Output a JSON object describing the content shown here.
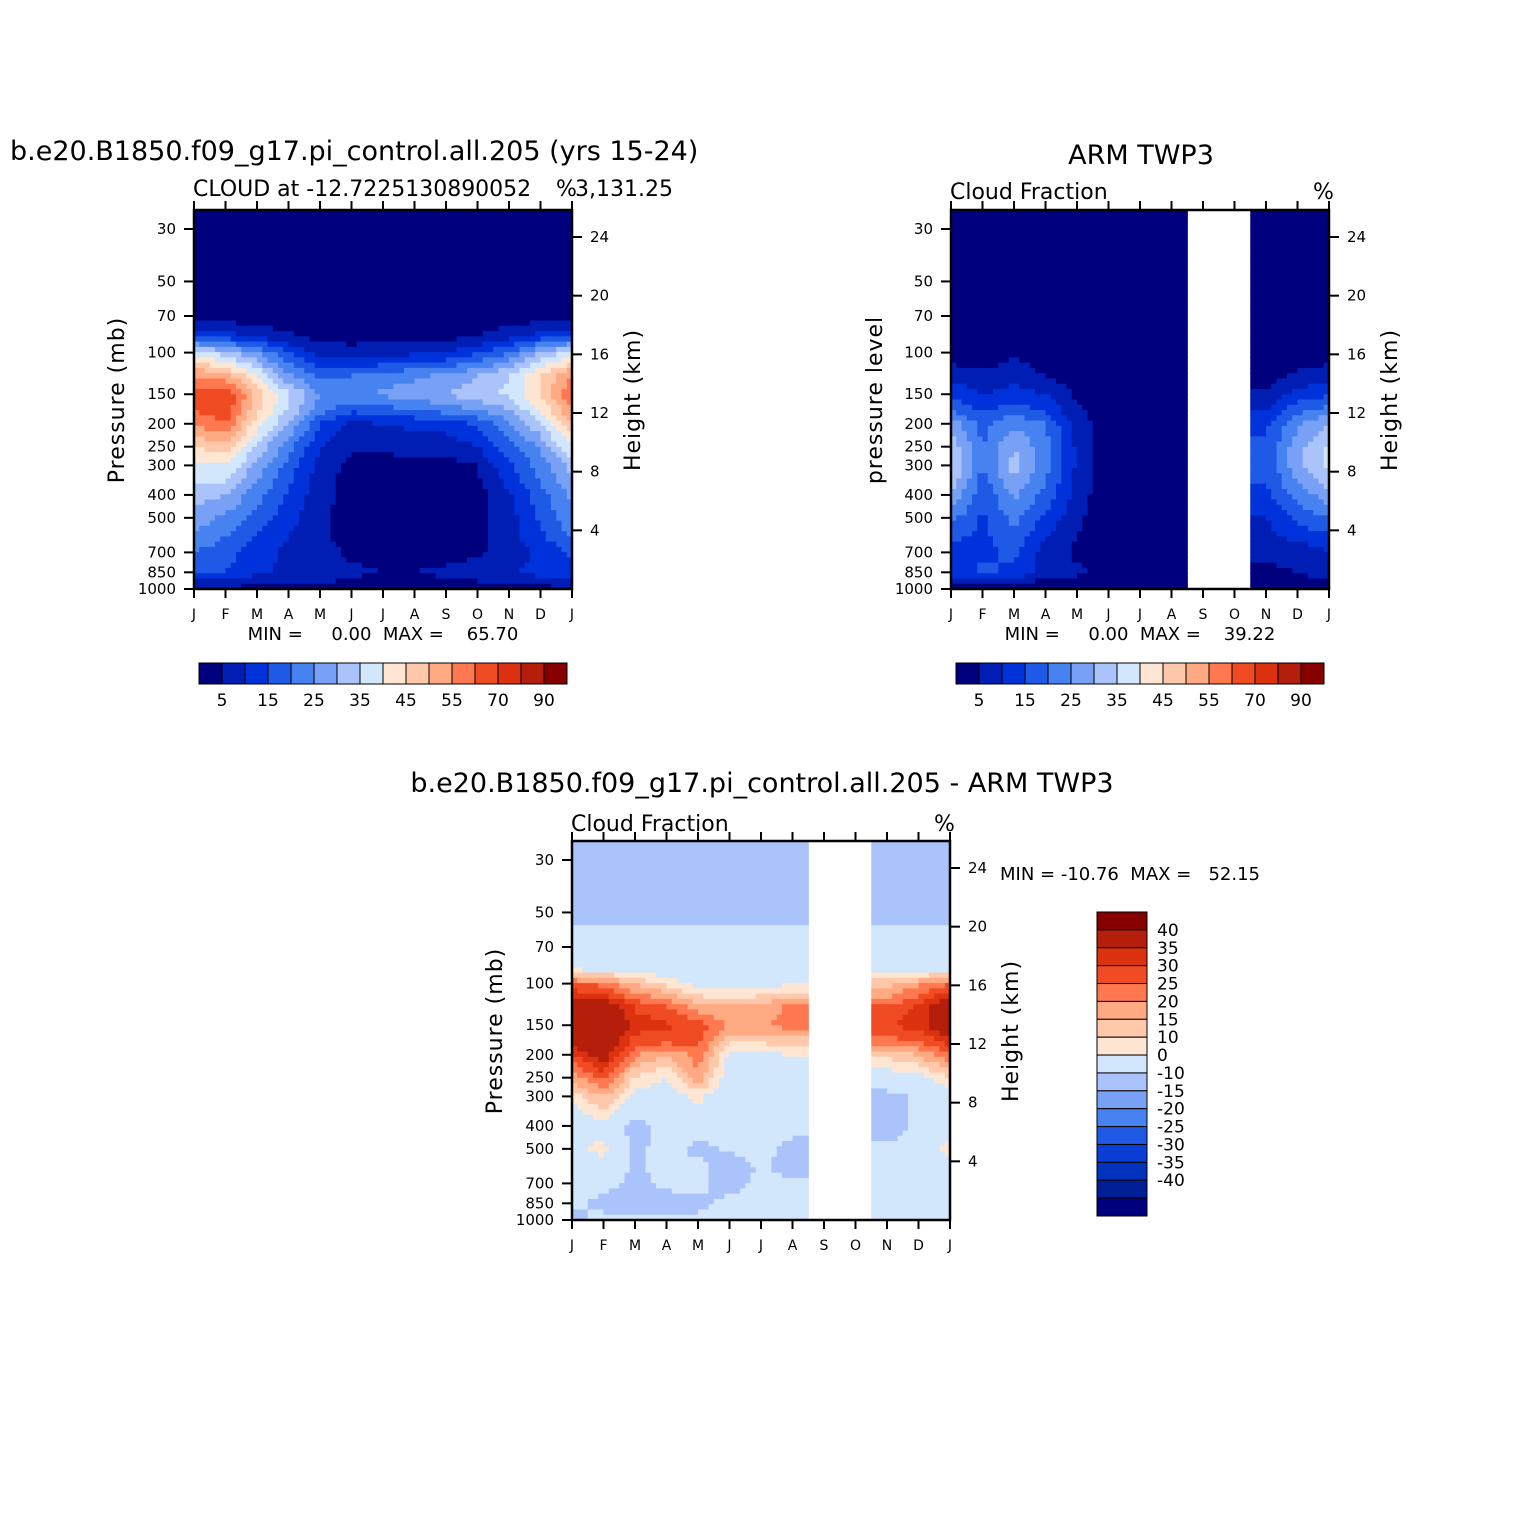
{
  "chart_data": [
    {
      "type": "heatmap",
      "title": "b.e20.B1850.f09_g17.pi_control.all.205 (yrs 15-24)",
      "subtitle_left": "CLOUD at -12.7225130890052",
      "subtitle_tail": "3,131.25",
      "units": "%",
      "ylabel": "Pressure (mb)",
      "ylabel_right": "Height (km)",
      "months": [
        "J",
        "F",
        "M",
        "A",
        "M",
        "J",
        "J",
        "A",
        "S",
        "O",
        "N",
        "D",
        "J"
      ],
      "p_ticks": [
        30,
        50,
        70,
        100,
        150,
        200,
        250,
        300,
        400,
        500,
        700,
        850,
        1000
      ],
      "z_ticks": [
        24,
        20,
        16,
        12,
        8,
        4
      ],
      "stats": "MIN =     0.00  MAX =    65.70",
      "min": 0.0,
      "max": 65.7,
      "levels": [
        5,
        10,
        15,
        20,
        25,
        30,
        35,
        40,
        45,
        50,
        55,
        60,
        70,
        80,
        90
      ],
      "colorbar_labels": [
        "5",
        "15",
        "25",
        "35",
        "45",
        "55",
        "70",
        "90"
      ],
      "grid_pressure": [
        30,
        50,
        70,
        85,
        100,
        125,
        150,
        175,
        200,
        250,
        300,
        400,
        500,
        600,
        700,
        850,
        1000
      ],
      "grid_values": [
        [
          0,
          0,
          0,
          0,
          0,
          0,
          0,
          0,
          0,
          0,
          0,
          0,
          0
        ],
        [
          0,
          0,
          0,
          0,
          0,
          0,
          0,
          0,
          0,
          0,
          0,
          0,
          0
        ],
        [
          2,
          2,
          2,
          1,
          1,
          1,
          1,
          1,
          1,
          1,
          2,
          2,
          2
        ],
        [
          14,
          12,
          9,
          6,
          3,
          3,
          3,
          3,
          3,
          5,
          8,
          12,
          14
        ],
        [
          38,
          32,
          25,
          15,
          8,
          7,
          8,
          9,
          10,
          14,
          20,
          30,
          38
        ],
        [
          55,
          52,
          40,
          26,
          18,
          20,
          22,
          24,
          26,
          30,
          35,
          45,
          55
        ],
        [
          62,
          66,
          48,
          36,
          25,
          24,
          26,
          28,
          30,
          33,
          36,
          45,
          60
        ],
        [
          60,
          64,
          46,
          34,
          22,
          16,
          18,
          20,
          22,
          25,
          30,
          40,
          55
        ],
        [
          55,
          60,
          42,
          30,
          15,
          9,
          10,
          11,
          12,
          16,
          24,
          34,
          50
        ],
        [
          45,
          48,
          34,
          22,
          10,
          6,
          6,
          7,
          7,
          10,
          18,
          26,
          40
        ],
        [
          38,
          40,
          28,
          18,
          8,
          3,
          3,
          3,
          3,
          5,
          14,
          22,
          32
        ],
        [
          32,
          30,
          22,
          14,
          7,
          3,
          2,
          2,
          2,
          3,
          9,
          18,
          26
        ],
        [
          28,
          24,
          18,
          12,
          6,
          2,
          2,
          2,
          2,
          3,
          8,
          16,
          24
        ],
        [
          24,
          20,
          14,
          10,
          6,
          3,
          2,
          2,
          2,
          3,
          8,
          14,
          20
        ],
        [
          20,
          17,
          12,
          9,
          7,
          4,
          3,
          3,
          3,
          4,
          7,
          11,
          16
        ],
        [
          16,
          15,
          11,
          9,
          8,
          6,
          5,
          5,
          6,
          8,
          9,
          12,
          14
        ],
        [
          4,
          4,
          3,
          3,
          3,
          3,
          2,
          2,
          2,
          2,
          3,
          3,
          4
        ]
      ]
    },
    {
      "type": "heatmap",
      "title": "ARM TWP3",
      "subtitle_left": "Cloud Fraction",
      "units": "%",
      "ylabel": "pressure level",
      "ylabel_right": "Height (km)",
      "months": [
        "J",
        "F",
        "M",
        "A",
        "M",
        "J",
        "J",
        "A",
        "S",
        "O",
        "N",
        "D",
        "J"
      ],
      "p_ticks": [
        30,
        50,
        70,
        100,
        150,
        200,
        250,
        300,
        400,
        500,
        700,
        850,
        1000
      ],
      "z_ticks": [
        24,
        20,
        16,
        12,
        8,
        4
      ],
      "stats": "MIN =     0.00  MAX =    39.22",
      "min": 0.0,
      "max": 39.22,
      "missing_months": [
        "S",
        "O",
        "N"
      ],
      "levels": [
        5,
        10,
        15,
        20,
        25,
        30,
        35,
        40,
        45,
        50,
        55,
        60,
        70,
        80,
        90
      ],
      "colorbar_labels": [
        "5",
        "15",
        "25",
        "35",
        "45",
        "55",
        "70",
        "90"
      ],
      "grid_pressure": [
        30,
        50,
        70,
        85,
        100,
        125,
        150,
        175,
        200,
        250,
        300,
        400,
        500,
        600,
        700,
        850,
        1000
      ],
      "grid_values": [
        [
          0,
          0,
          0,
          0,
          0,
          0,
          0,
          0,
          null,
          null,
          0,
          0,
          0
        ],
        [
          0,
          0,
          0,
          0,
          0,
          0,
          0,
          0,
          null,
          null,
          0,
          0,
          0
        ],
        [
          0,
          0,
          0,
          0,
          0,
          0,
          0,
          0,
          null,
          null,
          0,
          0,
          0
        ],
        [
          0,
          0,
          0,
          0,
          0,
          0,
          0,
          0,
          null,
          null,
          0,
          0,
          0
        ],
        [
          2,
          2,
          4,
          2,
          1,
          0,
          0,
          0,
          null,
          null,
          0,
          2,
          2
        ],
        [
          8,
          6,
          8,
          5,
          2,
          0,
          0,
          0,
          null,
          null,
          2,
          6,
          8
        ],
        [
          14,
          10,
          12,
          10,
          4,
          0,
          0,
          0,
          null,
          null,
          6,
          12,
          14
        ],
        [
          20,
          14,
          18,
          14,
          6,
          1,
          0,
          0,
          null,
          null,
          10,
          18,
          22
        ],
        [
          28,
          18,
          24,
          20,
          8,
          1,
          0,
          0,
          null,
          null,
          14,
          24,
          30
        ],
        [
          34,
          20,
          30,
          22,
          9,
          1,
          0,
          0,
          null,
          null,
          16,
          28,
          36
        ],
        [
          36,
          20,
          32,
          22,
          9,
          1,
          0,
          0,
          null,
          null,
          16,
          28,
          36
        ],
        [
          30,
          16,
          26,
          18,
          8,
          1,
          0,
          0,
          null,
          null,
          14,
          22,
          28
        ],
        [
          22,
          14,
          22,
          14,
          6,
          1,
          0,
          0,
          null,
          null,
          10,
          16,
          20
        ],
        [
          16,
          14,
          18,
          10,
          5,
          1,
          0,
          0,
          null,
          null,
          8,
          12,
          14
        ],
        [
          14,
          14,
          16,
          8,
          4,
          1,
          0,
          0,
          null,
          null,
          6,
          6,
          10
        ],
        [
          12,
          16,
          14,
          7,
          6,
          3,
          0,
          0,
          null,
          null,
          4,
          5,
          8
        ],
        [
          2,
          2,
          2,
          1,
          1,
          0,
          0,
          0,
          null,
          null,
          0,
          1,
          2
        ]
      ]
    },
    {
      "type": "heatmap",
      "title": "b.e20.B1850.f09_g17.pi_control.all.205 - ARM TWP3",
      "subtitle_left": "Cloud Fraction",
      "units": "%",
      "ylabel": "Pressure (mb)",
      "ylabel_right": "Height (km)",
      "months": [
        "J",
        "F",
        "M",
        "A",
        "M",
        "J",
        "J",
        "A",
        "S",
        "O",
        "N",
        "D",
        "J"
      ],
      "p_ticks": [
        30,
        50,
        70,
        100,
        150,
        200,
        250,
        300,
        400,
        500,
        700,
        850,
        1000
      ],
      "z_ticks": [
        24,
        20,
        16,
        12,
        8,
        4
      ],
      "stats": "MIN = -10.76  MAX =   52.15",
      "min": -10.76,
      "max": 52.15,
      "missing_months": [
        "S",
        "O",
        "N"
      ],
      "levels": [
        -40,
        -35,
        -30,
        -25,
        -20,
        -15,
        -10,
        0,
        10,
        15,
        20,
        25,
        30,
        35,
        40
      ],
      "colorbar_labels": [
        "40",
        "35",
        "30",
        "25",
        "20",
        "15",
        "10",
        "0",
        "-10",
        "-15",
        "-20",
        "-25",
        "-30",
        "-35",
        "-40"
      ],
      "grid_pressure": [
        30,
        50,
        70,
        85,
        100,
        125,
        150,
        175,
        200,
        250,
        300,
        400,
        500,
        600,
        700,
        850,
        1000
      ],
      "grid_values": [
        [
          -1,
          -1,
          -1,
          -1,
          -1,
          -1,
          -1,
          -1,
          null,
          null,
          -1,
          -1,
          -1
        ],
        [
          -1,
          -1,
          -1,
          -1,
          -1,
          -1,
          -1,
          -1,
          null,
          null,
          -1,
          -1,
          -1
        ],
        [
          2,
          2,
          2,
          2,
          2,
          2,
          2,
          2,
          null,
          null,
          2,
          2,
          2
        ],
        [
          6,
          6,
          5,
          4,
          3,
          3,
          3,
          3,
          null,
          null,
          4,
          5,
          6
        ],
        [
          30,
          28,
          20,
          14,
          8,
          7,
          8,
          9,
          null,
          null,
          18,
          24,
          30
        ],
        [
          48,
          46,
          34,
          30,
          22,
          20,
          22,
          26,
          null,
          null,
          30,
          36,
          48
        ],
        [
          50,
          52,
          38,
          36,
          34,
          24,
          24,
          28,
          null,
          null,
          34,
          38,
          46
        ],
        [
          46,
          48,
          32,
          32,
          32,
          16,
          16,
          18,
          null,
          null,
          28,
          30,
          38
        ],
        [
          34,
          44,
          26,
          20,
          28,
          9,
          9,
          10,
          null,
          null,
          16,
          20,
          30
        ],
        [
          22,
          32,
          14,
          10,
          24,
          5,
          5,
          6,
          null,
          null,
          6,
          8,
          14
        ],
        [
          12,
          20,
          8,
          6,
          12,
          3,
          3,
          3,
          null,
          null,
          -3,
          2,
          6
        ],
        [
          4,
          8,
          -4,
          4,
          4,
          2,
          2,
          2,
          null,
          null,
          -4,
          2,
          2
        ],
        [
          8,
          12,
          -2,
          3,
          -2,
          1,
          2,
          -2,
          null,
          null,
          2,
          2,
          14
        ],
        [
          4,
          6,
          -1,
          2,
          2,
          -4,
          1,
          -3,
          null,
          null,
          4,
          2,
          4
        ],
        [
          4,
          2,
          -2,
          2,
          2,
          -3,
          2,
          2,
          null,
          null,
          2,
          2,
          4
        ],
        [
          2,
          -2,
          -3,
          -4,
          -2,
          2,
          2,
          2,
          null,
          null,
          3,
          2,
          2
        ],
        [
          -2,
          2,
          2,
          2,
          2,
          2,
          2,
          2,
          null,
          null,
          2,
          2,
          2
        ]
      ]
    }
  ],
  "colors": {
    "full_scale": [
      "#00007f",
      "#001eb4",
      "#0032dc",
      "#1e5ae6",
      "#4682f0",
      "#78a0f5",
      "#aac3fa",
      "#d2e6fc",
      "#ffe6d2",
      "#ffc8aa",
      "#ffaa82",
      "#ff7850",
      "#f04b23",
      "#dc320f",
      "#b41e0a",
      "#870000"
    ],
    "diff_scale": [
      "#00007f",
      "#001e96",
      "#0032be",
      "#0a3ed7",
      "#1e5ae6",
      "#4682f0",
      "#78a0f5",
      "#aac3fa",
      "#d2e6fc",
      "#ffe6d2",
      "#ffc8aa",
      "#ffaa82",
      "#ff7850",
      "#f04b23",
      "#dc320f",
      "#b41e0a",
      "#870000"
    ]
  }
}
